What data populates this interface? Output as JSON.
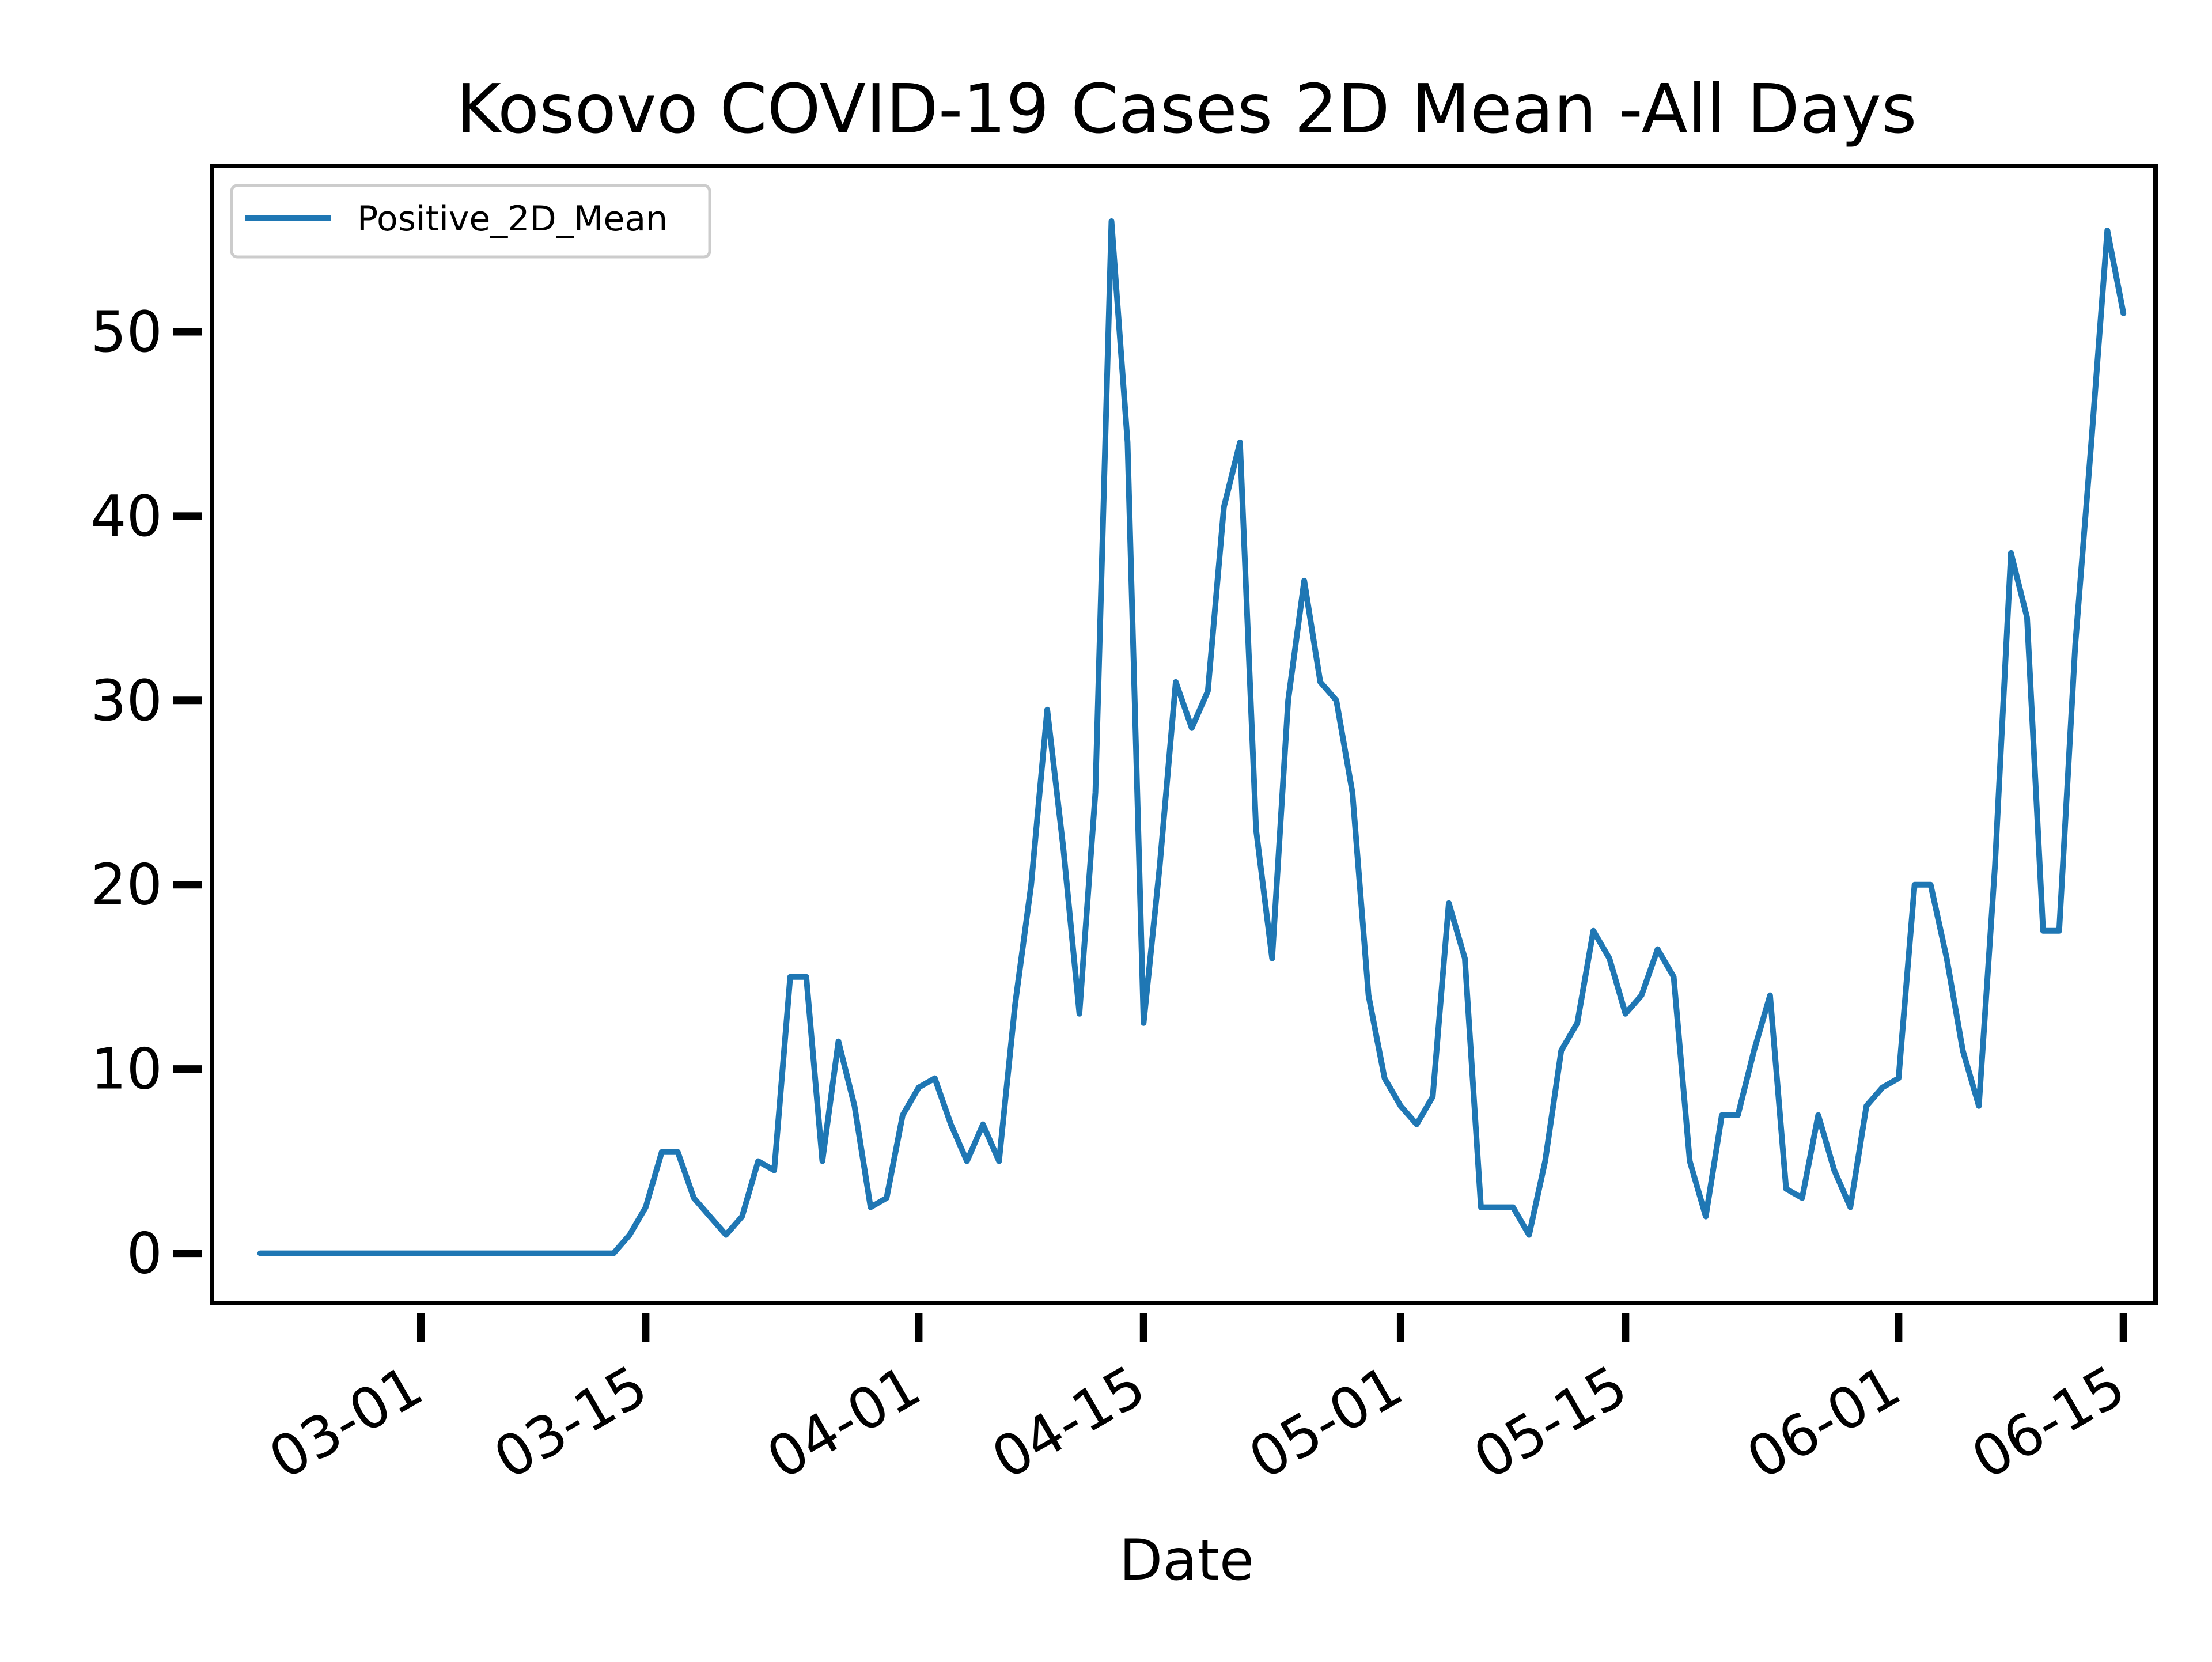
{
  "chart_data": {
    "type": "line",
    "title": "Kosovo COVID-19 Cases 2D Mean -All Days",
    "xlabel": "Date",
    "ylabel": "",
    "x_axis_type": "date",
    "x_start": "2020-02-20",
    "x_end": "2020-06-14",
    "xlim": [
      "2020-02-17",
      "2020-06-17"
    ],
    "ylim": [
      -2.7,
      59
    ],
    "x_ticks": [
      {
        "date": "2020-03-01",
        "label": "03-01"
      },
      {
        "date": "2020-03-15",
        "label": "03-15"
      },
      {
        "date": "2020-04-01",
        "label": "04-01"
      },
      {
        "date": "2020-04-15",
        "label": "04-15"
      },
      {
        "date": "2020-05-01",
        "label": "05-01"
      },
      {
        "date": "2020-05-15",
        "label": "05-15"
      },
      {
        "date": "2020-06-01",
        "label": "06-01"
      },
      {
        "date": "2020-06-15",
        "label": "06-15"
      }
    ],
    "y_ticks": [
      0,
      10,
      20,
      30,
      40,
      50
    ],
    "grid": false,
    "legend_position": "top-left",
    "series": [
      {
        "name": "Positive_2D_Mean",
        "color": "#1f77b4",
        "values": [
          0,
          0,
          0,
          0,
          0,
          0,
          0,
          0,
          0,
          0,
          0,
          0,
          0,
          0,
          0,
          0,
          0,
          0,
          0,
          0,
          0,
          0,
          0,
          1,
          2.5,
          5.5,
          5.5,
          3,
          2,
          1,
          2,
          5,
          4.5,
          15,
          15,
          5,
          11.5,
          8,
          2.5,
          3,
          7.5,
          9,
          9.5,
          7,
          5,
          7,
          5,
          13.5,
          20,
          29.5,
          22,
          13,
          25,
          56,
          44,
          12.5,
          21,
          31,
          28.5,
          30.5,
          40.5,
          44,
          23,
          16,
          30,
          36.5,
          31,
          30,
          25,
          14,
          9.5,
          8,
          7,
          8.5,
          19,
          16,
          2.5,
          2.5,
          2.5,
          1,
          5,
          11,
          12.5,
          17.5,
          16,
          13,
          14,
          16.5,
          15,
          5,
          2,
          7.5,
          7.5,
          11,
          14,
          3.5,
          3,
          7.5,
          4.5,
          2.5,
          8,
          9,
          9.5,
          20,
          20,
          16,
          11,
          8,
          21,
          38,
          34.5,
          17.5,
          17.5,
          33,
          44,
          55.5,
          51
        ]
      }
    ]
  }
}
